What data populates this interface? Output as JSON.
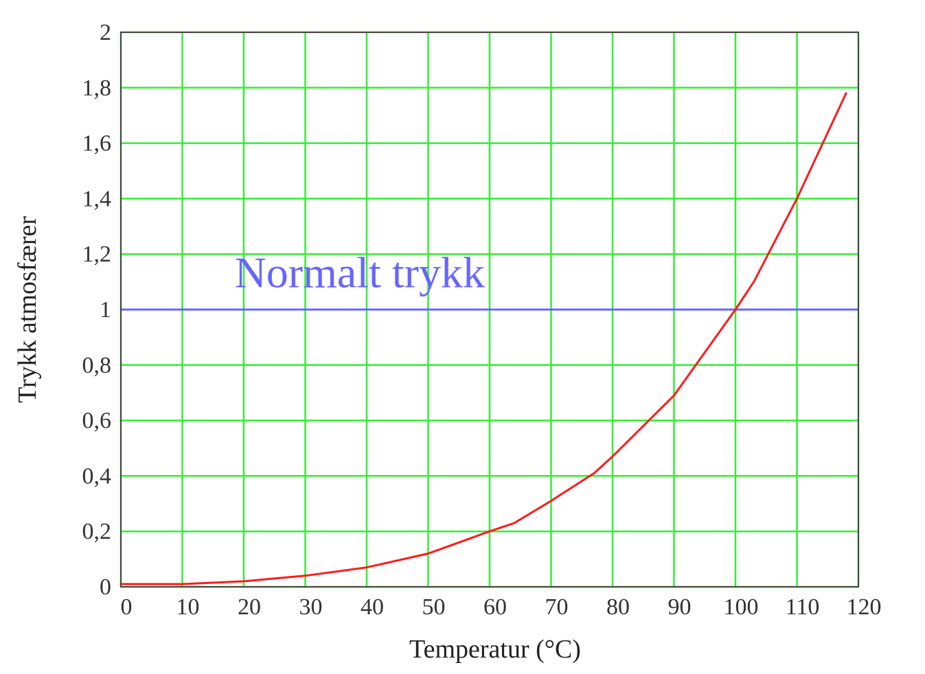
{
  "chart_data": {
    "type": "line",
    "title": "",
    "xlabel": "Temperatur (°C)",
    "ylabel": "Trykk atmosfærer",
    "xlim": [
      0,
      120
    ],
    "ylim": [
      0,
      2
    ],
    "x_ticks": [
      "0",
      "10",
      "20",
      "30",
      "40",
      "50",
      "60",
      "70",
      "80",
      "90",
      "100",
      "110",
      "120"
    ],
    "y_ticks": [
      "0",
      "0,2",
      "0,4",
      "0,6",
      "0,8",
      "1",
      "1,2",
      "1,4",
      "1,6",
      "1,8",
      "2"
    ],
    "grid": true,
    "grid_color": "#33ee33",
    "series": [
      {
        "color": "#ff1a1a",
        "x": [
          0,
          10,
          20,
          30,
          40,
          50,
          60,
          64,
          70,
          77,
          80,
          90,
          100,
          103,
          110,
          118
        ],
        "y": [
          0.01,
          0.01,
          0.02,
          0.04,
          0.07,
          0.12,
          0.2,
          0.23,
          0.31,
          0.41,
          0.47,
          0.69,
          1.0,
          1.1,
          1.4,
          1.78
        ]
      }
    ],
    "reference_lines": [
      {
        "y": 1,
        "color": "#6666ff",
        "label": "Normalt trykk",
        "label_x": 18.5,
        "label_y": 1.08
      }
    ]
  }
}
